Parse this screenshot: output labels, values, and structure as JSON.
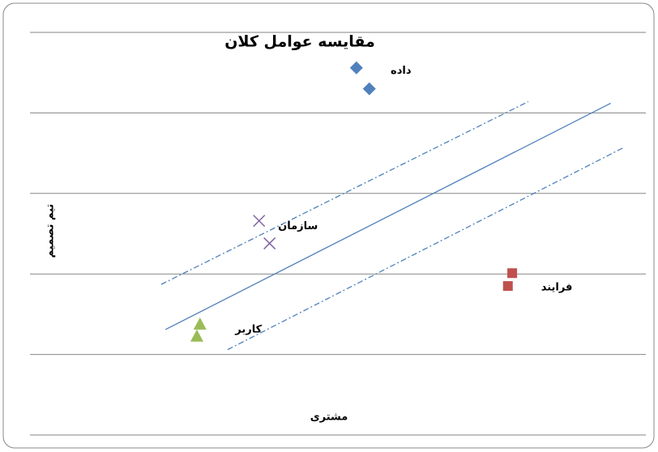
{
  "chart_data": {
    "type": "scatter",
    "title": "مقایسه عوامل کلان",
    "x_label": "مشتری",
    "y_label": "تیم تصمیم",
    "xlim": [
      0,
      10
    ],
    "ylim": [
      0,
      5
    ],
    "yticks": [
      0,
      1,
      2,
      3,
      4,
      5
    ],
    "grid": true,
    "series": [
      {
        "name": "داده",
        "color": "#4f81bd",
        "marker": "diamond",
        "x": [
          5.3,
          5.51
        ],
        "values": [
          4.56,
          4.3
        ]
      },
      {
        "name": "سازمان",
        "color": "#8064a2",
        "marker": "x",
        "x": [
          3.72,
          3.89
        ],
        "values": [
          2.66,
          2.38
        ]
      },
      {
        "name": "فرایند",
        "color": "#c0504d",
        "marker": "square",
        "x": [
          7.83,
          7.76
        ],
        "values": [
          2.01,
          1.85
        ]
      },
      {
        "name": "کاربر",
        "color": "#9bbb59",
        "marker": "triangle",
        "x": [
          2.76,
          2.71
        ],
        "values": [
          1.38,
          1.23
        ]
      }
    ],
    "lines": [
      {
        "style": "solid",
        "color": "#4f81bd",
        "x": [
          2.2,
          9.43
        ],
        "values": [
          1.31,
          4.12
        ]
      },
      {
        "style": "dashdot",
        "color": "#4f81bd",
        "x": [
          2.13,
          8.09
        ],
        "values": [
          1.87,
          4.14
        ]
      },
      {
        "style": "dashdot",
        "color": "#4f81bd",
        "x": [
          3.21,
          9.64
        ],
        "values": [
          1.06,
          3.57
        ]
      }
    ]
  }
}
